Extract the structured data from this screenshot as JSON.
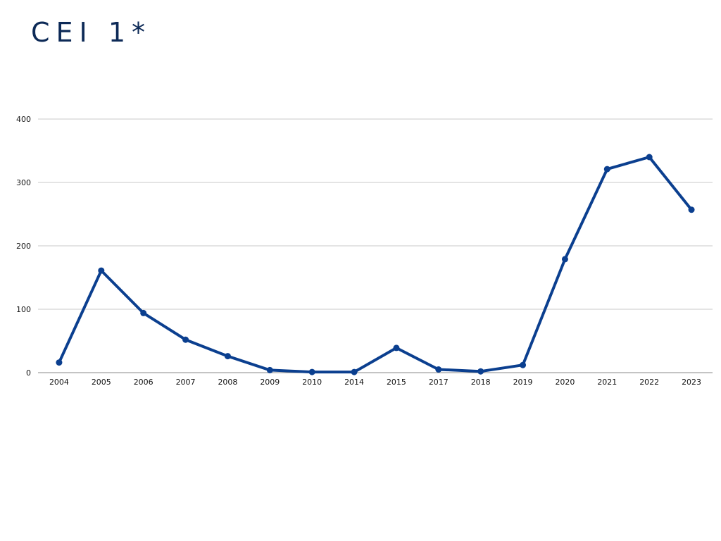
{
  "chart_data": {
    "type": "line",
    "title": "CEI 1*",
    "xlabel": "",
    "ylabel": "",
    "categories": [
      "2004",
      "2005",
      "2006",
      "2007",
      "2008",
      "2009",
      "2010",
      "2014",
      "2015",
      "2017",
      "2018",
      "2019",
      "2020",
      "2021",
      "2022",
      "2023"
    ],
    "values": [
      16,
      161,
      94,
      52,
      26,
      4,
      1,
      1,
      39,
      5,
      2,
      12,
      179,
      321,
      340,
      257
    ],
    "ylim": [
      0,
      400
    ],
    "yticks": [
      0,
      100,
      200,
      300,
      400
    ],
    "grid": true,
    "legend": "none",
    "line_color": "#0b3f8f",
    "title_color": "#0d2a57"
  }
}
